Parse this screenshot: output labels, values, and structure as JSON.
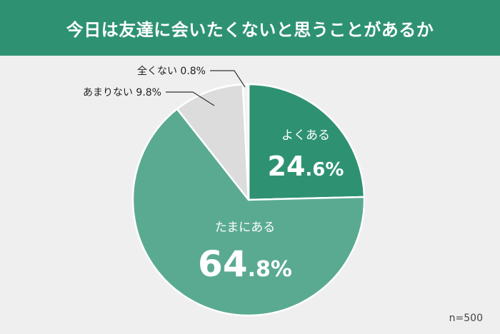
{
  "title": "今日は友達に会いたくないと思うことがあるか",
  "footnote": "n=500",
  "colors": {
    "header": "#2e9272",
    "background": "#efefef"
  },
  "chart_data": {
    "type": "pie",
    "start": "12 o'clock",
    "direction": "clockwise",
    "slices": [
      {
        "label": "よくある",
        "value": 24.6,
        "display": "24.6",
        "color": "#2e9272",
        "label_placement": "inside"
      },
      {
        "label": "たまにある",
        "value": 64.8,
        "display": "64.8",
        "color": "#5aaa92",
        "label_placement": "inside"
      },
      {
        "label": "あまりない",
        "value": 9.8,
        "display": "9.8",
        "color": "#dcdcdc",
        "label_placement": "outside"
      },
      {
        "label": "全くない",
        "value": 0.8,
        "display": "0.8",
        "color": "#f2f2f2",
        "label_placement": "outside"
      }
    ],
    "unit": "%"
  }
}
